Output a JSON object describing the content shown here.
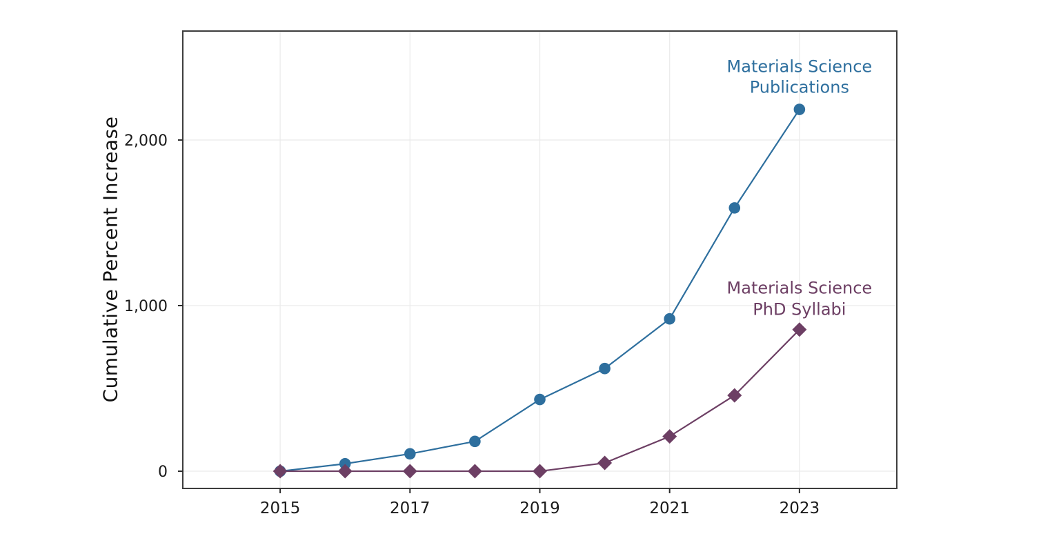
{
  "figure": {
    "background": "#ffffff",
    "spine_color": "#3d3d3d",
    "grid_color": "#ebebeb",
    "tick_color": "#2b2b2b",
    "tick_label_color": "#1a1a1a"
  },
  "chart_data": {
    "type": "line",
    "title": "",
    "xlabel": "",
    "ylabel": "Cumulative Percent Increase",
    "x": [
      2015,
      2016,
      2017,
      2018,
      2019,
      2020,
      2021,
      2022,
      2023
    ],
    "series": [
      {
        "name": "Materials Science Publications",
        "color": "#2e6f9e",
        "marker": "circle",
        "values": [
          0,
          45,
          105,
          180,
          433,
          620,
          920,
          1590,
          2185
        ]
      },
      {
        "name": "Materials Science PhD Syllabi",
        "color": "#6d3f64",
        "marker": "diamond",
        "values": [
          0,
          0,
          0,
          0,
          0,
          50,
          210,
          458,
          855
        ]
      }
    ],
    "xticks": {
      "values": [
        2015,
        2017,
        2019,
        2021,
        2023
      ],
      "labels": [
        "2015",
        "2017",
        "2019",
        "2021",
        "2023"
      ]
    },
    "yticks": {
      "values": [
        0,
        1000,
        2000
      ],
      "labels": [
        "0",
        "1,000",
        "2,000"
      ]
    },
    "xlim": [
      2013.5,
      2024.5
    ],
    "ylim": [
      -104,
      2658
    ],
    "grid": true,
    "legend_position": "inline-annotations",
    "annotations": [
      {
        "lines": [
          "Materials Science",
          "Publications"
        ],
        "x": 2023,
        "y": 2380,
        "color": "#2e6f9e"
      },
      {
        "lines": [
          "Materials Science",
          "PhD Syllabi"
        ],
        "x": 2023,
        "y": 1040,
        "color": "#6d3f64"
      }
    ]
  }
}
